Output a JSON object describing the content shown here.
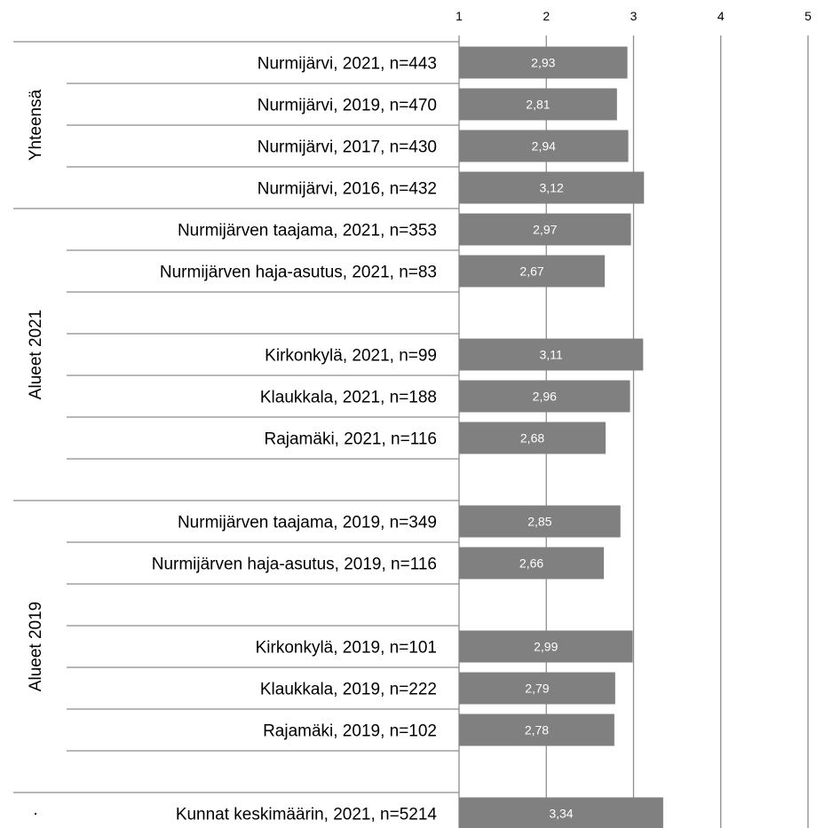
{
  "chart_data": {
    "type": "bar",
    "orientation": "horizontal",
    "xlim": [
      1,
      5
    ],
    "x_ticks": [
      "1",
      "2",
      "3",
      "4",
      "5"
    ],
    "grid": true,
    "bar_color": "#808080",
    "rows": [
      {
        "label": "Nurmijärvi, 2021, n=443",
        "value": 2.93,
        "value_label": "2,93"
      },
      {
        "label": "Nurmijärvi, 2019, n=470",
        "value": 2.81,
        "value_label": "2,81"
      },
      {
        "label": "Nurmijärvi, 2017, n=430",
        "value": 2.94,
        "value_label": "2,94"
      },
      {
        "label": "Nurmijärvi, 2016, n=432",
        "value": 3.12,
        "value_label": "3,12"
      },
      {
        "label": "Nurmijärven taajama, 2021, n=353",
        "value": 2.97,
        "value_label": "2,97"
      },
      {
        "label": "Nurmijärven haja-asutus, 2021, n=83",
        "value": 2.67,
        "value_label": "2,67"
      },
      {
        "label": "",
        "value": null,
        "value_label": ""
      },
      {
        "label": "Kirkonkylä, 2021, n=99",
        "value": 3.11,
        "value_label": "3,11"
      },
      {
        "label": "Klaukkala, 2021, n=188",
        "value": 2.96,
        "value_label": "2,96"
      },
      {
        "label": "Rajamäki, 2021, n=116",
        "value": 2.68,
        "value_label": "2,68"
      },
      {
        "label": "",
        "value": null,
        "value_label": ""
      },
      {
        "label": "Nurmijärven taajama, 2019, n=349",
        "value": 2.85,
        "value_label": "2,85"
      },
      {
        "label": "Nurmijärven haja-asutus, 2019, n=116",
        "value": 2.66,
        "value_label": "2,66"
      },
      {
        "label": "",
        "value": null,
        "value_label": ""
      },
      {
        "label": "Kirkonkylä, 2019, n=101",
        "value": 2.99,
        "value_label": "2,99"
      },
      {
        "label": "Klaukkala, 2019, n=222",
        "value": 2.79,
        "value_label": "2,79"
      },
      {
        "label": "Rajamäki, 2019, n=102",
        "value": 2.78,
        "value_label": "2,78"
      },
      {
        "label": "",
        "value": null,
        "value_label": ""
      },
      {
        "label": "Kunnat keskimäärin, 2021, n=5214",
        "value": 3.34,
        "value_label": "3,34"
      }
    ],
    "groups": [
      {
        "label": "Yhteensä",
        "start": 0,
        "end": 3
      },
      {
        "label": "Alueet 2021",
        "start": 4,
        "end": 10
      },
      {
        "label": "Alueet 2019",
        "start": 11,
        "end": 17
      },
      {
        "label": "·",
        "start": 18,
        "end": 18
      }
    ]
  }
}
